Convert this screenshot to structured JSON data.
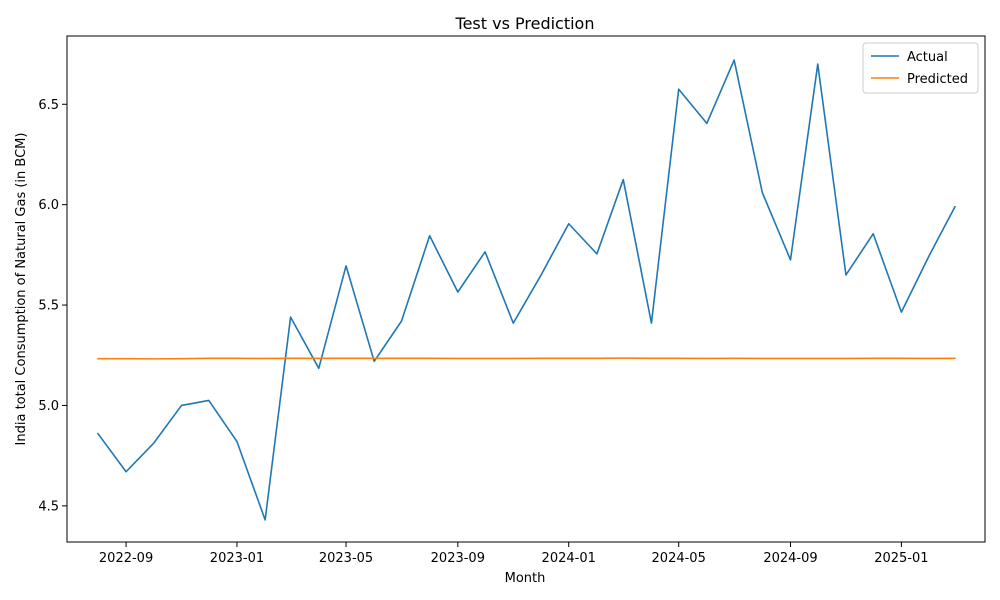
{
  "chart_data": {
    "type": "line",
    "title": "Test vs Prediction",
    "xlabel": "Month",
    "ylabel": "India total Consumption of Natural Gas (in BCM)",
    "x": [
      "2022-08",
      "2022-09",
      "2022-10",
      "2022-11",
      "2022-12",
      "2023-01",
      "2023-02",
      "2023-03",
      "2023-04",
      "2023-05",
      "2023-06",
      "2023-07",
      "2023-08",
      "2023-09",
      "2023-10",
      "2023-11",
      "2023-12",
      "2024-01",
      "2024-02",
      "2024-03",
      "2024-04",
      "2024-05",
      "2024-06",
      "2024-07",
      "2024-08",
      "2024-09",
      "2024-10",
      "2024-11",
      "2024-12",
      "2025-01",
      "2025-02",
      "2025-03"
    ],
    "x_ticks": [
      "2022-09",
      "2023-01",
      "2023-05",
      "2023-09",
      "2024-01",
      "2024-05",
      "2024-09",
      "2025-01"
    ],
    "ylim": [
      4.32,
      6.84
    ],
    "y_ticks": [
      "4.5",
      "5.0",
      "5.5",
      "6.0",
      "6.5"
    ],
    "grid": false,
    "legend_position": "top-right",
    "series": [
      {
        "name": "Actual",
        "color": "#1f77b4",
        "values": [
          4.86,
          4.67,
          4.81,
          5.0,
          5.025,
          4.82,
          4.43,
          5.44,
          5.185,
          5.695,
          5.22,
          5.42,
          5.845,
          5.565,
          5.765,
          5.41,
          5.645,
          5.905,
          5.755,
          6.125,
          5.41,
          6.575,
          6.405,
          6.72,
          6.06,
          5.725,
          6.7,
          5.65,
          5.855,
          5.465,
          5.75,
          5.99
        ]
      },
      {
        "name": "Predicted",
        "color": "#ff7f0e",
        "values": [
          5.233,
          5.233,
          5.232,
          5.233,
          5.235,
          5.235,
          5.234,
          5.235,
          5.235,
          5.235,
          5.235,
          5.235,
          5.235,
          5.234,
          5.234,
          5.234,
          5.235,
          5.235,
          5.235,
          5.236,
          5.235,
          5.235,
          5.234,
          5.235,
          5.234,
          5.234,
          5.234,
          5.234,
          5.235,
          5.235,
          5.234,
          5.235
        ]
      }
    ]
  }
}
